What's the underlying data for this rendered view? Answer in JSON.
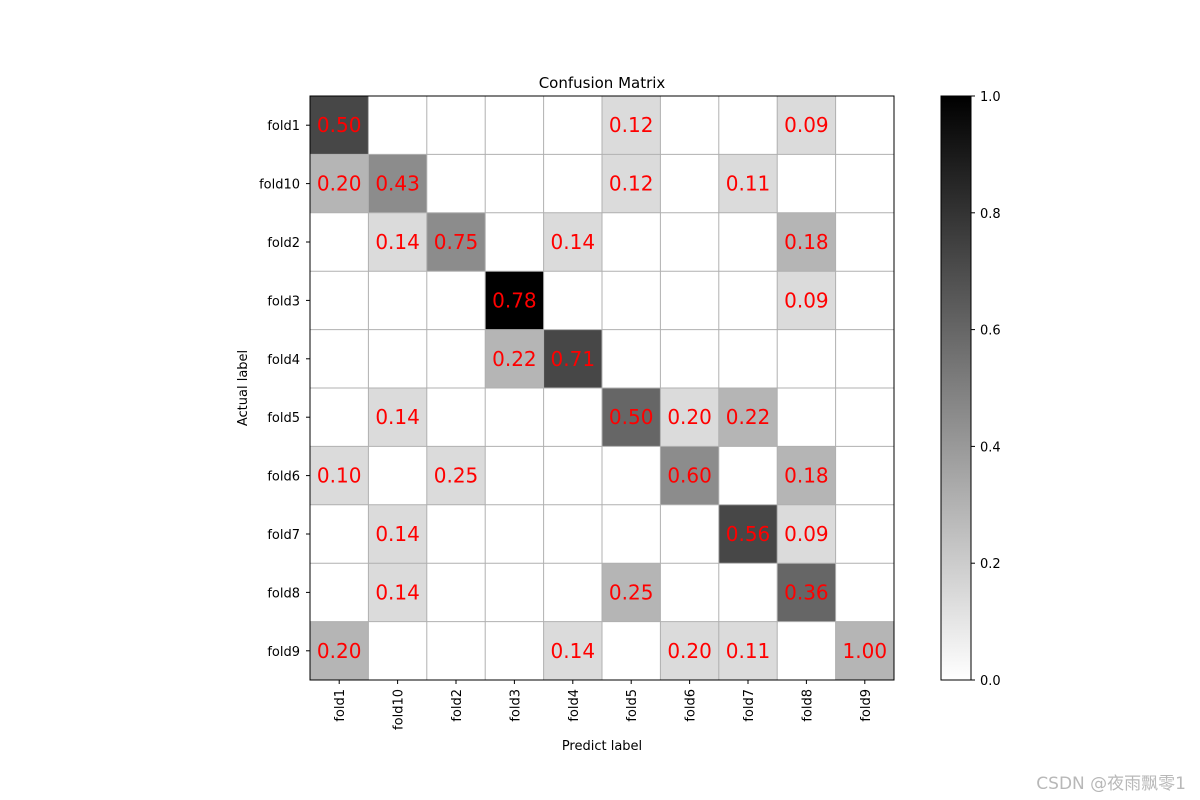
{
  "chart_data": {
    "type": "heatmap",
    "title": "Confusion Matrix",
    "xlabel": "Predict label",
    "ylabel": "Actual label",
    "row_labels": [
      "fold1",
      "fold10",
      "fold2",
      "fold3",
      "fold4",
      "fold5",
      "fold6",
      "fold7",
      "fold8",
      "fold9"
    ],
    "col_labels": [
      "fold1",
      "fold10",
      "fold2",
      "fold3",
      "fold4",
      "fold5",
      "fold6",
      "fold7",
      "fold8",
      "fold9"
    ],
    "values": [
      [
        0.5,
        null,
        null,
        null,
        null,
        0.12,
        null,
        null,
        0.09,
        null
      ],
      [
        0.2,
        0.43,
        null,
        null,
        null,
        0.12,
        null,
        0.11,
        null,
        null
      ],
      [
        null,
        0.14,
        0.75,
        null,
        0.14,
        null,
        null,
        null,
        0.18,
        null
      ],
      [
        null,
        null,
        null,
        0.78,
        null,
        null,
        null,
        null,
        0.09,
        null
      ],
      [
        null,
        null,
        null,
        0.22,
        0.71,
        null,
        null,
        null,
        null,
        null
      ],
      [
        null,
        0.14,
        null,
        null,
        null,
        0.5,
        0.2,
        0.22,
        null,
        null
      ],
      [
        0.1,
        null,
        0.25,
        null,
        null,
        null,
        0.6,
        null,
        0.18,
        null
      ],
      [
        null,
        0.14,
        null,
        null,
        null,
        null,
        null,
        0.56,
        0.09,
        null
      ],
      [
        null,
        0.14,
        null,
        null,
        null,
        0.25,
        null,
        null,
        0.36,
        null
      ],
      [
        0.2,
        null,
        null,
        null,
        0.14,
        null,
        0.2,
        0.11,
        null,
        1.0
      ]
    ],
    "shade_values": [
      [
        0.72,
        null,
        null,
        null,
        null,
        0.14,
        null,
        null,
        0.14,
        null
      ],
      [
        0.29,
        0.45,
        null,
        null,
        null,
        0.14,
        null,
        0.14,
        null,
        null
      ],
      [
        null,
        0.14,
        0.45,
        null,
        0.14,
        null,
        null,
        null,
        0.29,
        null
      ],
      [
        null,
        null,
        null,
        1.0,
        null,
        null,
        null,
        null,
        0.14,
        null
      ],
      [
        null,
        null,
        null,
        0.29,
        0.72,
        null,
        null,
        null,
        null,
        null
      ],
      [
        null,
        0.14,
        null,
        null,
        null,
        0.6,
        0.14,
        0.29,
        null,
        null
      ],
      [
        0.14,
        null,
        0.14,
        null,
        null,
        null,
        0.45,
        null,
        0.29,
        null
      ],
      [
        null,
        0.14,
        null,
        null,
        null,
        null,
        null,
        0.72,
        0.14,
        null
      ],
      [
        null,
        0.14,
        null,
        null,
        null,
        0.29,
        null,
        null,
        0.6,
        null
      ],
      [
        0.29,
        null,
        null,
        null,
        0.14,
        null,
        0.14,
        0.14,
        null,
        0.29
      ]
    ],
    "colorbar": {
      "range": [
        0.0,
        1.0
      ],
      "ticks": [
        0.0,
        0.2,
        0.4,
        0.6,
        0.8,
        1.0
      ],
      "tick_labels": [
        "0.0",
        "0.2",
        "0.4",
        "0.6",
        "0.8",
        "1.0"
      ],
      "colormap": "Greys"
    },
    "annotation_color": "#ff0000",
    "grid": true
  },
  "watermark": "CSDN @夜雨飘零1"
}
